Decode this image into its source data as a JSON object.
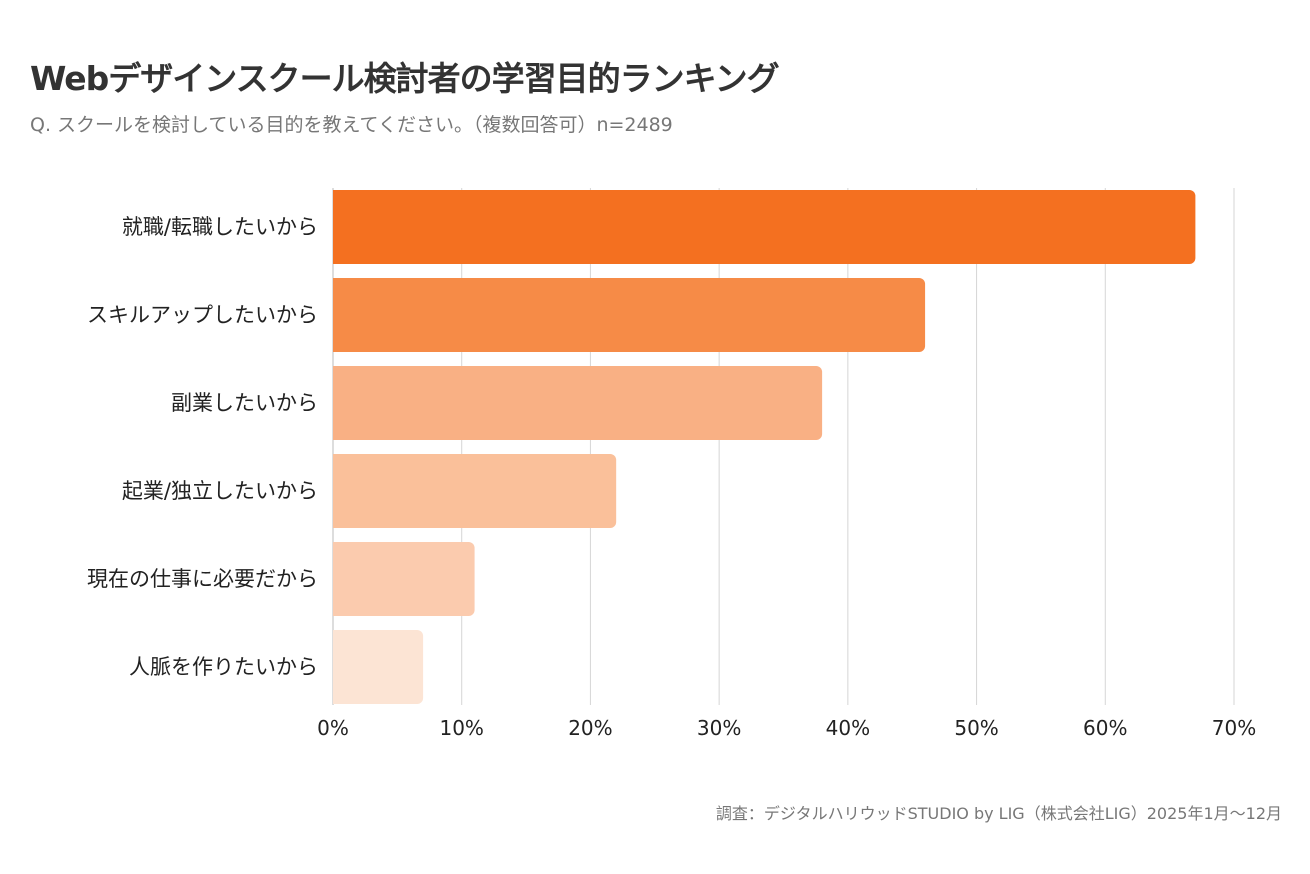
{
  "header": {
    "title": "Webデザインスクール検討者の学習目的ランキング",
    "subtitle": "Q. スクールを検討している目的を教えてください。（複数回答可）n=2489"
  },
  "footer": {
    "source": "調査：デジタルハリウッドSTUDIO by LIG（株式会社LIG）2025年1月〜12月"
  },
  "chart_data": {
    "type": "bar",
    "orientation": "horizontal",
    "categories": [
      "就職/転職したいから",
      "スキルアップしたいから",
      "副業したいから",
      "起業/独立したいから",
      "現在の仕事に必要だから",
      "人脈を作りたいから"
    ],
    "values": [
      67,
      46,
      38,
      22,
      11,
      7
    ],
    "unit": "%",
    "xlim": [
      0,
      70
    ],
    "xticks": [
      "0%",
      "10%",
      "20%",
      "30%",
      "40%",
      "50%",
      "60%",
      "70%"
    ],
    "grid": true,
    "colors": [
      "#F47020",
      "#F68B47",
      "#F9B084",
      "#FAC09A",
      "#FBCBAE",
      "#FCE4D4"
    ]
  }
}
